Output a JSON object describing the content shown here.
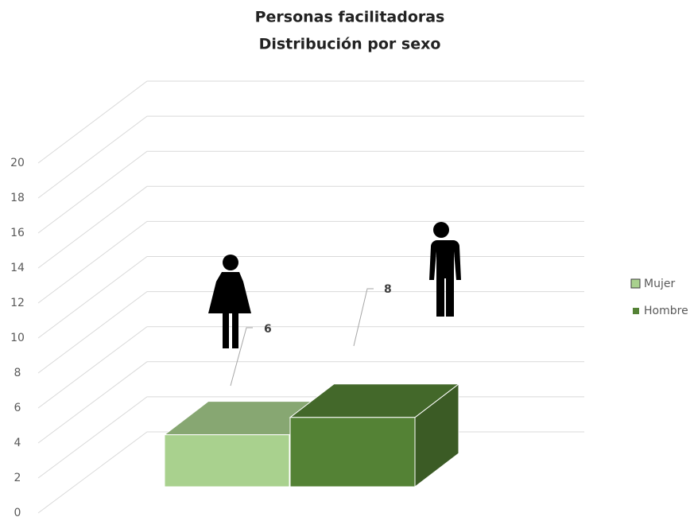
{
  "chart_data": {
    "type": "bar3d",
    "title": [
      "Personas facilitadoras",
      "Distribución por sexo"
    ],
    "categories": [
      null
    ],
    "series": [
      {
        "name": "Mujer",
        "color": "#a9d18e",
        "values": [
          6
        ]
      },
      {
        "name": "Hombre",
        "color": "#548235",
        "values": [
          8
        ]
      }
    ],
    "ylim": [
      0,
      20
    ],
    "yticks": [
      0,
      2,
      4,
      6,
      8,
      10,
      12,
      14,
      16,
      18,
      20
    ],
    "grid": true,
    "legend": "right"
  }
}
